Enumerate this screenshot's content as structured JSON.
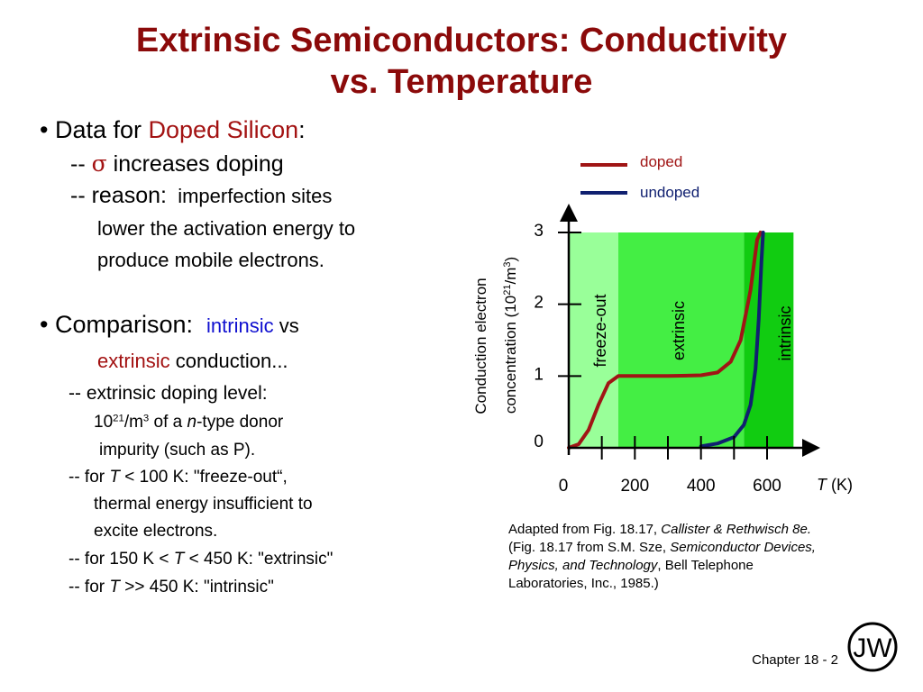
{
  "slide": {
    "title_line1": "Extrinsic Semiconductors: Conductivity",
    "title_line2": "vs. Temperature",
    "bullet1": {
      "prefix": "Data for ",
      "highlight": "Doped Silicon",
      "suffix": ":",
      "sub1_prefix": "-- ",
      "sub1_symbol": "σ",
      "sub1_text": " increases doping",
      "sub2_prefix": "-- reason:",
      "sub2_text": "imperfection sites",
      "sub2_line2": "lower the activation energy to",
      "sub2_line3": "produce mobile electrons."
    },
    "bullet2": {
      "prefix": "Comparison:",
      "intrinsic": "intrinsic",
      "vs": " vs",
      "extrinsic": "extrinsic",
      "conduction": " conduction...",
      "l1": "-- extrinsic doping level:",
      "l2_base": "10",
      "l2_exp": "21",
      "l2_mid": "/m",
      "l2_exp2": "3",
      "l2_of": " of a ",
      "l2_n": "n",
      "l2_rest": "-type donor",
      "l3": "impurity (such as P).",
      "l4_prefix": "--  for ",
      "l4_T": "T",
      "l4_rest": " < 100 K: \"freeze-out“,",
      "l5": "thermal energy insufficient to",
      "l6": "excite electrons.",
      "l7_prefix": "--  for 150 K < ",
      "l7_T": "T",
      "l7_rest": " < 450 K: \"extrinsic\"",
      "l8_prefix": "--  for ",
      "l8_T": "T",
      "l8_rest": " >> 450 K:  \"intrinsic\""
    },
    "caption": {
      "c1": "Adapted from Fig. 18.17, ",
      "c2": "Callister & Rethwisch 8e.",
      "c3": " (Fig. 18.17 from S.M. Sze, ",
      "c4": "Semiconductor Devices, Physics, and Technology",
      "c5": ", Bell Telephone Laboratories, Inc., 1985.)"
    },
    "footer": "Chapter 18 -  2",
    "logo_letters": "JW"
  },
  "chart_data": {
    "type": "line",
    "ylabel_line1": "Conduction electron",
    "ylabel_line2_a": "concentration (10",
    "ylabel_line2_exp": "21",
    "ylabel_line2_b": "/m",
    "ylabel_line2_exp2": "3",
    "ylabel_line2_c": ")",
    "xlabel_T": "T",
    "xlabel_unit": " (K)",
    "xlim": [
      0,
      700
    ],
    "ylim": [
      0,
      3
    ],
    "x_tick_labels": [
      "0",
      "200",
      "400",
      "600"
    ],
    "x_tick_values": [
      0,
      200,
      400,
      600
    ],
    "x_minor_ticks": [
      100,
      200,
      300,
      400,
      500,
      600
    ],
    "y_tick_labels": [
      "0",
      "1",
      "2",
      "3"
    ],
    "y_tick_values": [
      0,
      1,
      2,
      3
    ],
    "regions": [
      {
        "name": "freeze-out",
        "x_start": 0,
        "x_end": 150,
        "color": "#99ff99"
      },
      {
        "name": "extrinsic",
        "x_start": 150,
        "x_end": 530,
        "color": "#44ee44"
      },
      {
        "name": "intrinsic",
        "x_start": 530,
        "x_end": 680,
        "color": "#11cc11"
      }
    ],
    "series": [
      {
        "name": "doped",
        "color": "#a01515",
        "points": [
          [
            0,
            0.0
          ],
          [
            30,
            0.05
          ],
          [
            60,
            0.25
          ],
          [
            90,
            0.6
          ],
          [
            120,
            0.9
          ],
          [
            150,
            1.0
          ],
          [
            200,
            1.0
          ],
          [
            300,
            1.0
          ],
          [
            400,
            1.01
          ],
          [
            450,
            1.05
          ],
          [
            490,
            1.2
          ],
          [
            520,
            1.5
          ],
          [
            550,
            2.2
          ],
          [
            570,
            2.9
          ],
          [
            580,
            3.0
          ]
        ]
      },
      {
        "name": "undoped",
        "color": "#102070",
        "points": [
          [
            400,
            0.02
          ],
          [
            450,
            0.06
          ],
          [
            500,
            0.15
          ],
          [
            530,
            0.32
          ],
          [
            550,
            0.6
          ],
          [
            565,
            1.1
          ],
          [
            575,
            1.8
          ],
          [
            583,
            2.6
          ],
          [
            588,
            3.0
          ]
        ]
      }
    ],
    "legend_position": "top-right"
  }
}
